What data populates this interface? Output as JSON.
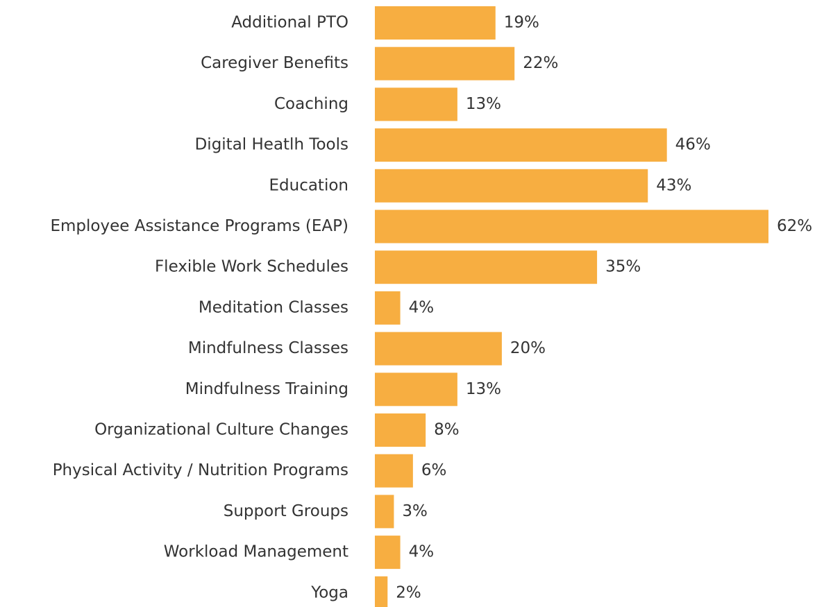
{
  "chart_data": {
    "type": "bar",
    "orientation": "horizontal",
    "categories": [
      "Additional PTO",
      "Caregiver Benefits",
      "Coaching",
      "Digital Heatlh Tools",
      "Education",
      "Employee Assistance Programs (EAP)",
      "Flexible Work Schedules",
      "Meditation Classes",
      "Mindfulness Classes",
      "Mindfulness Training",
      "Organizational Culture Changes",
      "Physical Activity / Nutrition Programs",
      "Support Groups",
      "Workload Management",
      "Yoga"
    ],
    "values": [
      19,
      22,
      13,
      46,
      43,
      62,
      35,
      4,
      20,
      13,
      8,
      6,
      3,
      4,
      2
    ],
    "value_labels": [
      "19%",
      "22%",
      "13%",
      "46%",
      "43%",
      "62%",
      "35%",
      "4%",
      "20%",
      "13%",
      "8%",
      "6%",
      "3%",
      "4%",
      "2%"
    ],
    "color": "#f7ae41"
  }
}
